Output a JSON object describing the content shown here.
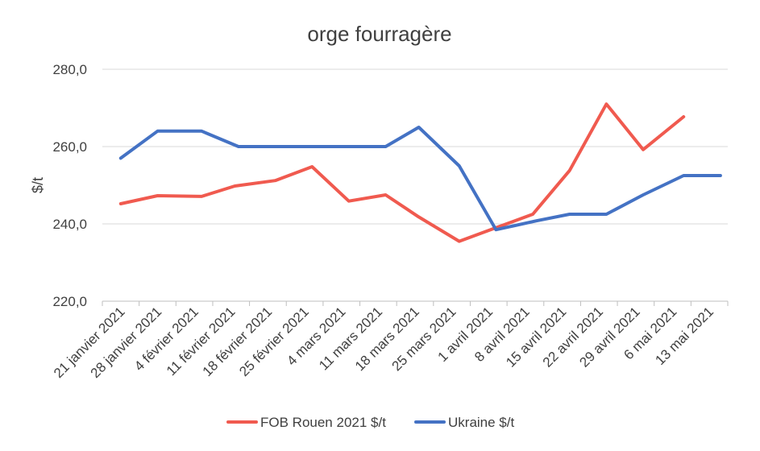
{
  "chart_data": {
    "type": "line",
    "title": "orge fourragère",
    "xlabel": "",
    "ylabel": "$/t",
    "ylim": [
      220,
      280
    ],
    "yticks": [
      "220,0",
      "240,0",
      "260,0",
      "280,0"
    ],
    "grid": true,
    "legend_position": "bottom",
    "categories": [
      "21 janvier 2021",
      "28 janvier 2021",
      "4 février 2021",
      "11 février 2021",
      "18 février 2021",
      "25 février 2021",
      "4 mars 2021",
      "11 mars 2021",
      "18 mars 2021",
      "25 mars 2021",
      "1 avril 2021",
      "8 avril 2021",
      "15 avril 2021",
      "22 avril 2021",
      "29 avril 2021",
      "6 mai 2021",
      "13 mai 2021"
    ],
    "series": [
      {
        "name": "FOB Rouen 2021 $/t",
        "color": "#f05a4f",
        "points": [
          {
            "x": 0.0,
            "y": 245.2
          },
          {
            "x": 1.0,
            "y": 247.3
          },
          {
            "x": 2.2,
            "y": 247.1
          },
          {
            "x": 3.1,
            "y": 249.8
          },
          {
            "x": 4.2,
            "y": 251.2
          },
          {
            "x": 5.2,
            "y": 254.8
          },
          {
            "x": 6.2,
            "y": 245.9
          },
          {
            "x": 7.2,
            "y": 247.5
          },
          {
            "x": 8.1,
            "y": 241.8
          },
          {
            "x": 9.2,
            "y": 235.5
          },
          {
            "x": 10.2,
            "y": 239.0
          },
          {
            "x": 11.2,
            "y": 242.5
          },
          {
            "x": 12.2,
            "y": 253.8
          },
          {
            "x": 13.2,
            "y": 271.0
          },
          {
            "x": 14.2,
            "y": 259.2
          },
          {
            "x": 15.3,
            "y": 267.7
          }
        ]
      },
      {
        "name": "Ukraine $/t",
        "color": "#4472c4",
        "points": [
          {
            "x": 0.0,
            "y": 257.0
          },
          {
            "x": 1.0,
            "y": 264.0
          },
          {
            "x": 2.2,
            "y": 264.0
          },
          {
            "x": 3.2,
            "y": 260.0
          },
          {
            "x": 4.2,
            "y": 260.0
          },
          {
            "x": 5.2,
            "y": 260.0
          },
          {
            "x": 6.2,
            "y": 260.0
          },
          {
            "x": 7.2,
            "y": 260.0
          },
          {
            "x": 8.1,
            "y": 265.0
          },
          {
            "x": 9.2,
            "y": 255.0
          },
          {
            "x": 10.2,
            "y": 238.5
          },
          {
            "x": 11.3,
            "y": 240.8
          },
          {
            "x": 12.2,
            "y": 242.5
          },
          {
            "x": 13.2,
            "y": 242.5
          },
          {
            "x": 14.2,
            "y": 247.5
          },
          {
            "x": 15.3,
            "y": 252.5
          },
          {
            "x": 16.3,
            "y": 252.5
          }
        ]
      }
    ]
  }
}
